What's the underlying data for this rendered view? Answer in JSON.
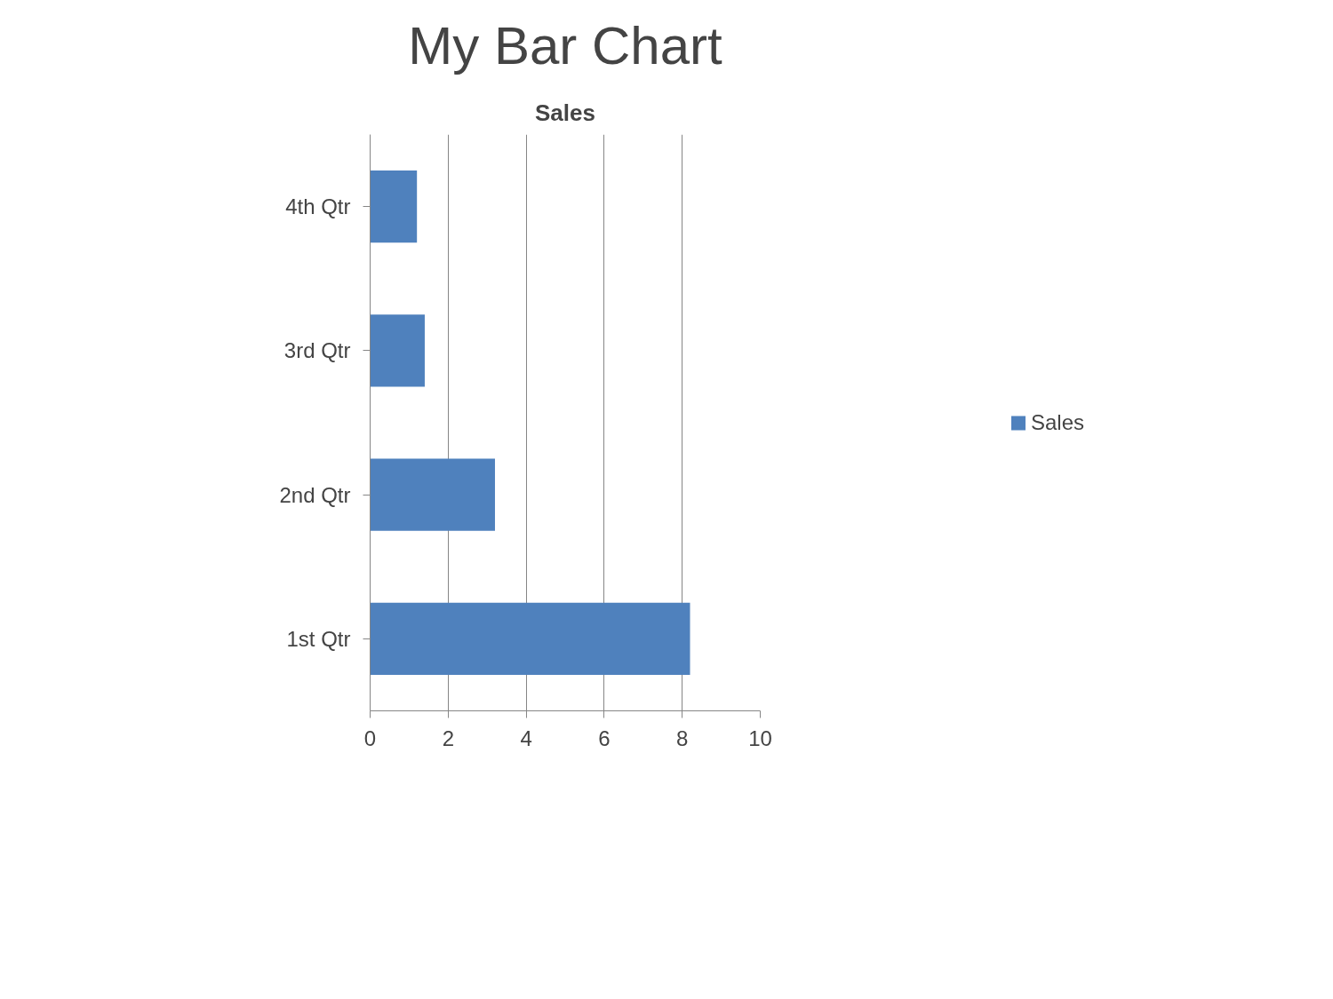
{
  "chart_data": {
    "type": "bar",
    "orientation": "horizontal",
    "title": "My Bar Chart",
    "subtitle": "Sales",
    "categories": [
      "4th Qtr",
      "3rd Qtr",
      "2nd Qtr",
      "1st Qtr"
    ],
    "series": [
      {
        "name": "Sales",
        "color": "#4f81bd",
        "values": [
          1.2,
          1.4,
          3.2,
          8.2
        ]
      }
    ],
    "xlim": [
      0,
      10
    ],
    "xticks": [
      0,
      2,
      4,
      6,
      8,
      10
    ],
    "grid": "x",
    "legend": "right"
  }
}
